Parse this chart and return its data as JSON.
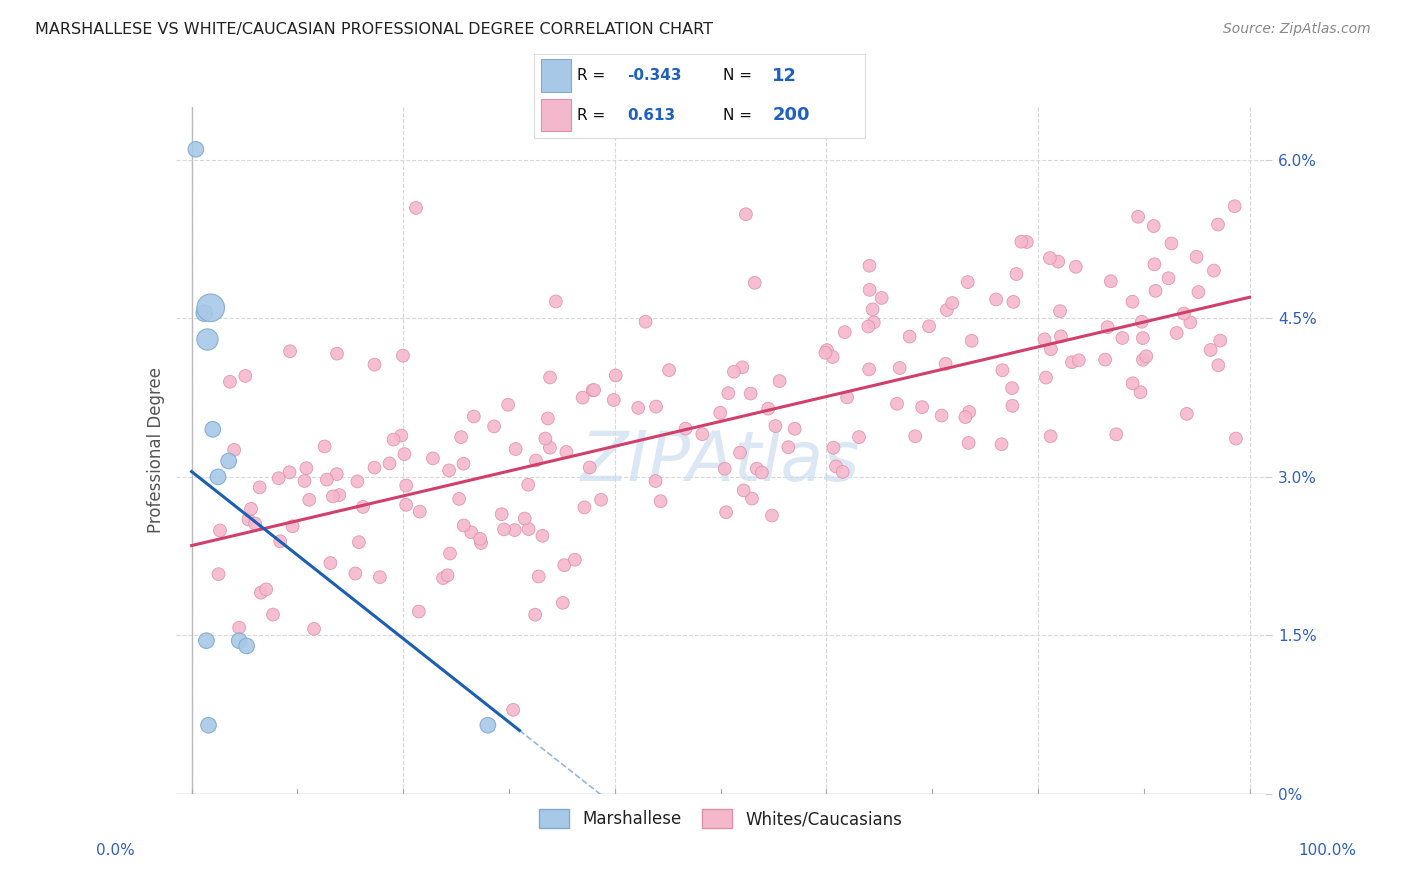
{
  "title": "MARSHALLESE VS WHITE/CAUCASIAN PROFESSIONAL DEGREE CORRELATION CHART",
  "source": "Source: ZipAtlas.com",
  "ylabel": "Professional Degree",
  "right_ytick_vals": [
    0.0,
    1.5,
    3.0,
    4.5,
    6.0
  ],
  "right_ytick_labels": [
    "0%",
    "1.5%",
    "3.0%",
    "4.5%",
    "6.0%"
  ],
  "legend_r_blue": "-0.343",
  "legend_n_blue": "12",
  "legend_r_pink": "0.613",
  "legend_n_pink": "200",
  "blue_scatter_color": "#a8c8e8",
  "blue_scatter_edge": "#80aad0",
  "blue_line_color": "#1a5fb4",
  "pink_scatter_color": "#f4b8cc",
  "pink_scatter_edge": "#e090a8",
  "pink_line_color": "#d0406a",
  "watermark": "ZIPAtlas",
  "watermark_color": "#ccddf0",
  "background_color": "#ffffff",
  "grid_color": "#d8d8d8",
  "axis_label_color": "#3060c0",
  "ylabel_color": "#555555",
  "title_color": "#222222",
  "source_color": "#888888",
  "legend_text_color": "#111111",
  "legend_val_color": "#2060c0",
  "ymin": 0.0,
  "ymax": 6.5,
  "xmin": 0.0,
  "xmax": 100.0,
  "pink_trend_x0": 0.0,
  "pink_trend_y0": 2.35,
  "pink_trend_x1": 100.0,
  "pink_trend_y1": 4.7,
  "blue_trend_x0": 0.0,
  "blue_trend_y0": 3.05,
  "blue_trend_x1": 31.0,
  "blue_trend_y1": 0.6
}
